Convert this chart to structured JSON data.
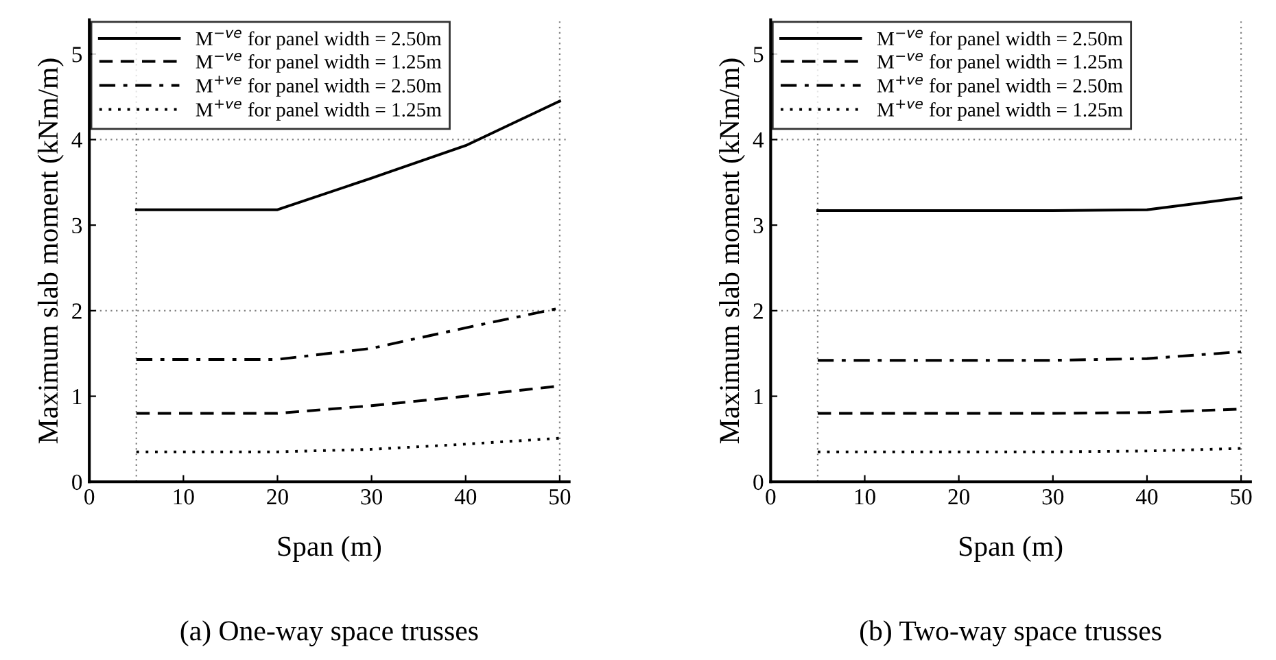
{
  "chart_data": [
    {
      "type": "line",
      "xlabel": "Span (m)",
      "ylabel": "Maximum slab moment (kNm/m)",
      "annotations": [
        "(a) One-way space trusses"
      ],
      "xlim": [
        0,
        51
      ],
      "ylim": [
        0,
        5.4
      ],
      "xticks": [
        0,
        10,
        20,
        30,
        40,
        50
      ],
      "yticks": [
        0,
        1,
        2,
        3,
        4,
        5
      ],
      "legend": "top left",
      "grid": false,
      "ref_lines": [
        {
          "axis": "y",
          "value": 2,
          "line_style": "dotted",
          "color": "#808080"
        },
        {
          "axis": "y",
          "value": 4,
          "line_style": "dotted",
          "color": "#808080"
        },
        {
          "axis": "x",
          "value": 5,
          "line_style": "dotted",
          "color": "#808080"
        },
        {
          "axis": "x",
          "value": 50,
          "line_style": "dotted",
          "color": "#808080"
        }
      ],
      "x": [
        5,
        10,
        20,
        30,
        40,
        50
      ],
      "series": [
        {
          "name": "M$^{−ve}$ for panel width = 2.50m",
          "color": "#000000",
          "line_style": "solid",
          "values": [
            3.18,
            3.18,
            3.18,
            3.55,
            3.93,
            4.45
          ]
        },
        {
          "name": "M$^{−ve}$ for panel width = 1.25m",
          "color": "#000000",
          "line_style": "dashed",
          "values": [
            0.8,
            0.8,
            0.8,
            0.89,
            1.0,
            1.12
          ]
        },
        {
          "name": "M$^{+ve}$ for panel width = 2.50m",
          "color": "#000000",
          "line_style": "dashdot",
          "values": [
            1.43,
            1.43,
            1.43,
            1.56,
            1.8,
            2.03
          ]
        },
        {
          "name": "M$^{+ve}$ for panel width = 1.25m",
          "color": "#000000",
          "line_style": "dotted",
          "values": [
            0.35,
            0.35,
            0.35,
            0.38,
            0.44,
            0.51
          ]
        }
      ]
    },
    {
      "type": "line",
      "xlabel": "Span (m)",
      "ylabel": "Maximum slab moment (kNm/m)",
      "annotations": [
        "(b) Two-way space trusses"
      ],
      "xlim": [
        0,
        51
      ],
      "ylim": [
        0,
        5.4
      ],
      "xticks": [
        0,
        10,
        20,
        30,
        40,
        50
      ],
      "yticks": [
        0,
        1,
        2,
        3,
        4,
        5
      ],
      "legend": "top left",
      "grid": false,
      "ref_lines": [
        {
          "axis": "y",
          "value": 2,
          "line_style": "dotted",
          "color": "#808080"
        },
        {
          "axis": "y",
          "value": 4,
          "line_style": "dotted",
          "color": "#808080"
        },
        {
          "axis": "x",
          "value": 5,
          "line_style": "dotted",
          "color": "#808080"
        },
        {
          "axis": "x",
          "value": 50,
          "line_style": "dotted",
          "color": "#808080"
        }
      ],
      "x": [
        5,
        10,
        20,
        30,
        40,
        50
      ],
      "series": [
        {
          "name": "M$^{−ve}$ for panel width = 2.50m",
          "color": "#000000",
          "line_style": "solid",
          "values": [
            3.17,
            3.17,
            3.17,
            3.17,
            3.18,
            3.32
          ]
        },
        {
          "name": "M$^{−ve}$ for panel width = 1.25m",
          "color": "#000000",
          "line_style": "dashed",
          "values": [
            0.8,
            0.8,
            0.8,
            0.8,
            0.81,
            0.85
          ]
        },
        {
          "name": "M$^{+ve}$ for panel width = 2.50m",
          "color": "#000000",
          "line_style": "dashdot",
          "values": [
            1.42,
            1.42,
            1.42,
            1.42,
            1.44,
            1.52
          ]
        },
        {
          "name": "M$^{+ve}$ for panel width = 1.25m",
          "color": "#000000",
          "line_style": "dotted",
          "values": [
            0.35,
            0.35,
            0.35,
            0.35,
            0.36,
            0.39
          ]
        }
      ]
    }
  ]
}
